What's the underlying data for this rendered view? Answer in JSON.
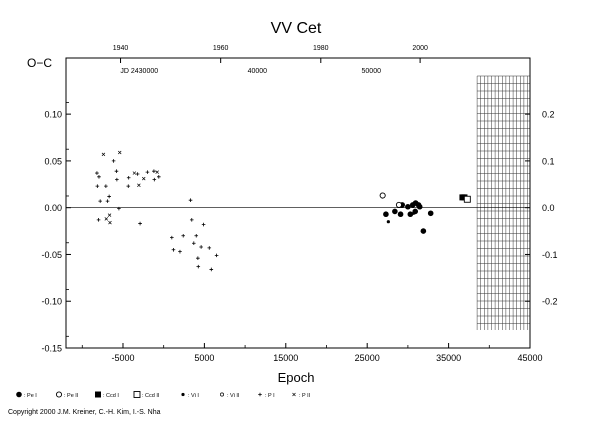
{
  "chart_data": {
    "type": "scatter",
    "title": "VV Cet",
    "xlabel": "Epoch",
    "ylabel": "O−C",
    "xlim": [
      -12000,
      45000
    ],
    "ylim": [
      -0.15,
      0.16
    ],
    "grid": false,
    "zero_line": 0,
    "x_ticks": [
      -5000,
      5000,
      15000,
      25000,
      35000,
      45000
    ],
    "x_tick_labels": [
      "-5000",
      "5000",
      "15000",
      "25000",
      "35000",
      "45000"
    ],
    "y_ticks": [
      -0.15,
      -0.1,
      -0.05,
      0.0,
      0.05,
      0.1
    ],
    "y_tick_labels": [
      "-0.15",
      "-0.10",
      "-0.05",
      "0.00",
      "0.05",
      "0.10"
    ],
    "top_year_ticks": [
      {
        "label": "1940",
        "epoch": -5300
      },
      {
        "label": "1960",
        "epoch": 7000
      },
      {
        "label": "1980",
        "epoch": 19300
      },
      {
        "label": "2000",
        "epoch": 31500
      }
    ],
    "jd_ticks": [
      {
        "label": "JD 2430000",
        "epoch": -3000
      },
      {
        "label": "40000",
        "epoch": 11500
      },
      {
        "label": "50000",
        "epoch": 25500
      }
    ],
    "right_axis_ticks": [
      {
        "label": "0.2",
        "y": 0.1
      },
      {
        "label": "0.1",
        "y": 0.05
      },
      {
        "label": "0.0",
        "y": 0.0
      },
      {
        "label": "-0.1",
        "y": -0.05
      },
      {
        "label": "-0.2",
        "y": -0.1
      }
    ],
    "hatched_region": {
      "x_from": 38500,
      "x_to": 45000
    },
    "series": [
      {
        "name": "Pe I",
        "marker": "filled-circle",
        "points": [
          [
            27300,
            -0.007
          ],
          [
            28400,
            -0.004
          ],
          [
            29100,
            -0.007
          ],
          [
            29300,
            0.003
          ],
          [
            30000,
            0.001
          ],
          [
            30300,
            -0.007
          ],
          [
            30600,
            0.003
          ],
          [
            30900,
            -0.004
          ],
          [
            30950,
            0.005
          ],
          [
            31300,
            0.003
          ],
          [
            31450,
            0.001
          ],
          [
            31900,
            -0.025
          ],
          [
            32800,
            -0.006
          ]
        ]
      },
      {
        "name": "Pe II",
        "marker": "open-circle",
        "points": [
          [
            26900,
            0.013
          ],
          [
            28900,
            0.003
          ]
        ]
      },
      {
        "name": "Ccd I",
        "marker": "filled-square",
        "points": [
          [
            36700,
            0.011
          ],
          [
            36950,
            0.011
          ]
        ]
      },
      {
        "name": "Ccd II",
        "marker": "open-square",
        "points": [
          [
            37300,
            0.009
          ]
        ]
      },
      {
        "name": "Vi I",
        "marker": "small-dot",
        "points": [
          [
            27600,
            -0.015
          ],
          [
            30700,
            -0.006
          ]
        ]
      },
      {
        "name": "Vi II",
        "marker": "small-open-circle",
        "points": []
      },
      {
        "name": "P I",
        "marker": "plus",
        "points": [
          [
            -8200,
            0.037
          ],
          [
            -7950,
            0.033
          ],
          [
            -8150,
            0.023
          ],
          [
            -7800,
            0.007
          ],
          [
            -8000,
            -0.013
          ],
          [
            -7100,
            0.023
          ],
          [
            -6900,
            0.007
          ],
          [
            -6700,
            0.012
          ],
          [
            -6150,
            0.05
          ],
          [
            -5800,
            0.039
          ],
          [
            -5750,
            0.03
          ],
          [
            -5500,
            -0.001
          ],
          [
            -4300,
            0.032
          ],
          [
            -4350,
            0.023
          ],
          [
            -3200,
            0.036
          ],
          [
            -2900,
            -0.017
          ],
          [
            -2000,
            0.038
          ],
          [
            -1200,
            0.039
          ],
          [
            -1150,
            0.03
          ],
          [
            -600,
            0.033
          ],
          [
            1000,
            -0.032
          ],
          [
            1200,
            -0.045
          ],
          [
            2000,
            -0.047
          ],
          [
            2400,
            -0.03
          ],
          [
            3300,
            0.008
          ],
          [
            3450,
            -0.013
          ],
          [
            3700,
            -0.038
          ],
          [
            4000,
            -0.03
          ],
          [
            4200,
            -0.054
          ],
          [
            4250,
            -0.063
          ],
          [
            4600,
            -0.042
          ],
          [
            4900,
            -0.018
          ],
          [
            5600,
            -0.043
          ],
          [
            5850,
            -0.066
          ],
          [
            6500,
            -0.051
          ]
        ]
      },
      {
        "name": "P II",
        "marker": "x",
        "points": [
          [
            -7400,
            0.057
          ],
          [
            -7050,
            -0.012
          ],
          [
            -6650,
            -0.008
          ],
          [
            -6600,
            -0.016
          ],
          [
            -5400,
            0.059
          ],
          [
            -3600,
            0.037
          ],
          [
            -3050,
            0.024
          ],
          [
            -2450,
            0.031
          ],
          [
            -800,
            0.038
          ]
        ]
      }
    ]
  },
  "legend": [
    {
      "marker": "filled-circle",
      "label": ": Pe I"
    },
    {
      "marker": "open-circle",
      "label": ": Pe II"
    },
    {
      "marker": "filled-square",
      "label": ": Ccd I"
    },
    {
      "marker": "open-square",
      "label": ": Ccd II"
    },
    {
      "marker": "small-dot",
      "label": ": Vi I"
    },
    {
      "marker": "small-open-circle",
      "label": ": Vi II"
    },
    {
      "marker": "plus",
      "label": ": P I"
    },
    {
      "marker": "x",
      "label": ": P II"
    }
  ],
  "copyright": "Copyright 2000 J.M. Kreiner, C.-H. Kim, I.-S. Nha"
}
